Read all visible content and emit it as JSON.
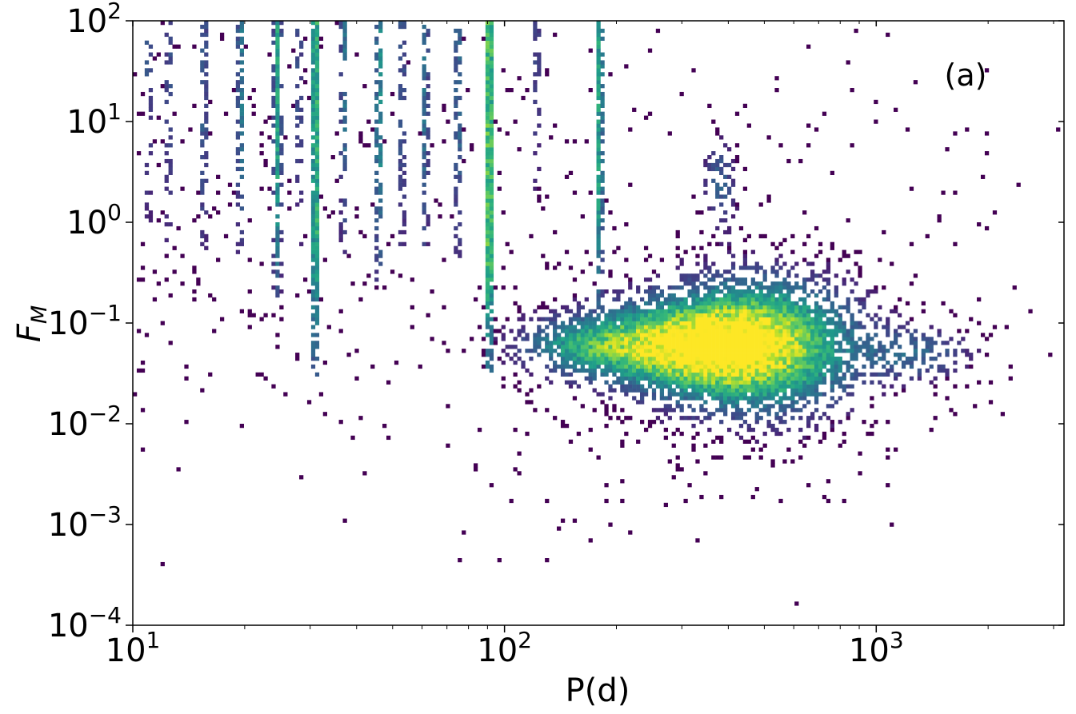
{
  "chart_data": {
    "type": "heatmap",
    "title": "",
    "panel_label": "(a)",
    "xlabel": "P(d)",
    "ylabel_main": "F",
    "ylabel_sub": "M",
    "x_scale": "log",
    "y_scale": "log",
    "xlim": [
      10,
      3200
    ],
    "ylim": [
      0.0001,
      100
    ],
    "grid": false,
    "colormap": "viridis",
    "x_ticks": [
      {
        "value": 10,
        "base": "10",
        "exp": "1"
      },
      {
        "value": 100,
        "base": "10",
        "exp": "2"
      },
      {
        "value": 1000,
        "base": "10",
        "exp": "3"
      }
    ],
    "y_ticks": [
      {
        "value": 0.0001,
        "base": "10",
        "exp": "−4"
      },
      {
        "value": 0.001,
        "base": "10",
        "exp": "−3"
      },
      {
        "value": 0.01,
        "base": "10",
        "exp": "−2"
      },
      {
        "value": 0.1,
        "base": "10",
        "exp": "−1"
      },
      {
        "value": 1,
        "base": "10",
        "exp": "0"
      },
      {
        "value": 10,
        "base": "10",
        "exp": "1"
      },
      {
        "value": 100,
        "base": "10",
        "exp": "2"
      }
    ],
    "density_clusters": [
      {
        "p_center": 480,
        "fm_center": 0.06,
        "p_spread_dex": 0.17,
        "fm_spread_dex": 0.42,
        "peak": 1.0
      },
      {
        "p_center": 280,
        "fm_center": 0.06,
        "p_spread_dex": 0.15,
        "fm_spread_dex": 0.28,
        "peak": 0.72
      },
      {
        "p_center": 160,
        "fm_center": 0.06,
        "p_spread_dex": 0.12,
        "fm_spread_dex": 0.2,
        "peak": 0.45
      },
      {
        "p_center": 1300,
        "fm_center": 0.05,
        "p_spread_dex": 0.1,
        "fm_spread_dex": 0.18,
        "peak": 0.3
      },
      {
        "p_center": 380,
        "fm_center": 2.5,
        "p_spread_dex": 0.03,
        "fm_spread_dex": 0.3,
        "peak": 0.3
      }
    ],
    "vertical_stripes": [
      {
        "p": 91,
        "fm_min": 0.03,
        "fm_max": 100,
        "intensity": 0.95
      },
      {
        "p": 31,
        "fm_min": 0.03,
        "fm_max": 100,
        "intensity": 0.8
      },
      {
        "p": 180,
        "fm_min": 0.12,
        "fm_max": 100,
        "intensity": 0.65
      },
      {
        "p": 24.5,
        "fm_min": 0.15,
        "fm_max": 100,
        "intensity": 0.55
      },
      {
        "p": 46,
        "fm_min": 0.25,
        "fm_max": 100,
        "intensity": 0.55
      },
      {
        "p": 19.5,
        "fm_min": 0.5,
        "fm_max": 100,
        "intensity": 0.45
      },
      {
        "p": 61,
        "fm_min": 0.5,
        "fm_max": 100,
        "intensity": 0.4
      },
      {
        "p": 37,
        "fm_min": 0.5,
        "fm_max": 100,
        "intensity": 0.4
      },
      {
        "p": 75,
        "fm_min": 0.4,
        "fm_max": 100,
        "intensity": 0.4
      },
      {
        "p": 15.5,
        "fm_min": 0.5,
        "fm_max": 100,
        "intensity": 0.35
      },
      {
        "p": 53,
        "fm_min": 0.5,
        "fm_max": 100,
        "intensity": 0.35
      },
      {
        "p": 28,
        "fm_min": 0.6,
        "fm_max": 100,
        "intensity": 0.3
      },
      {
        "p": 12.5,
        "fm_min": 0.6,
        "fm_max": 100,
        "intensity": 0.3
      },
      {
        "p": 122,
        "fm_min": 1.5,
        "fm_max": 100,
        "intensity": 0.25
      },
      {
        "p": 11,
        "fm_min": 1.0,
        "fm_max": 100,
        "intensity": 0.3
      }
    ]
  }
}
